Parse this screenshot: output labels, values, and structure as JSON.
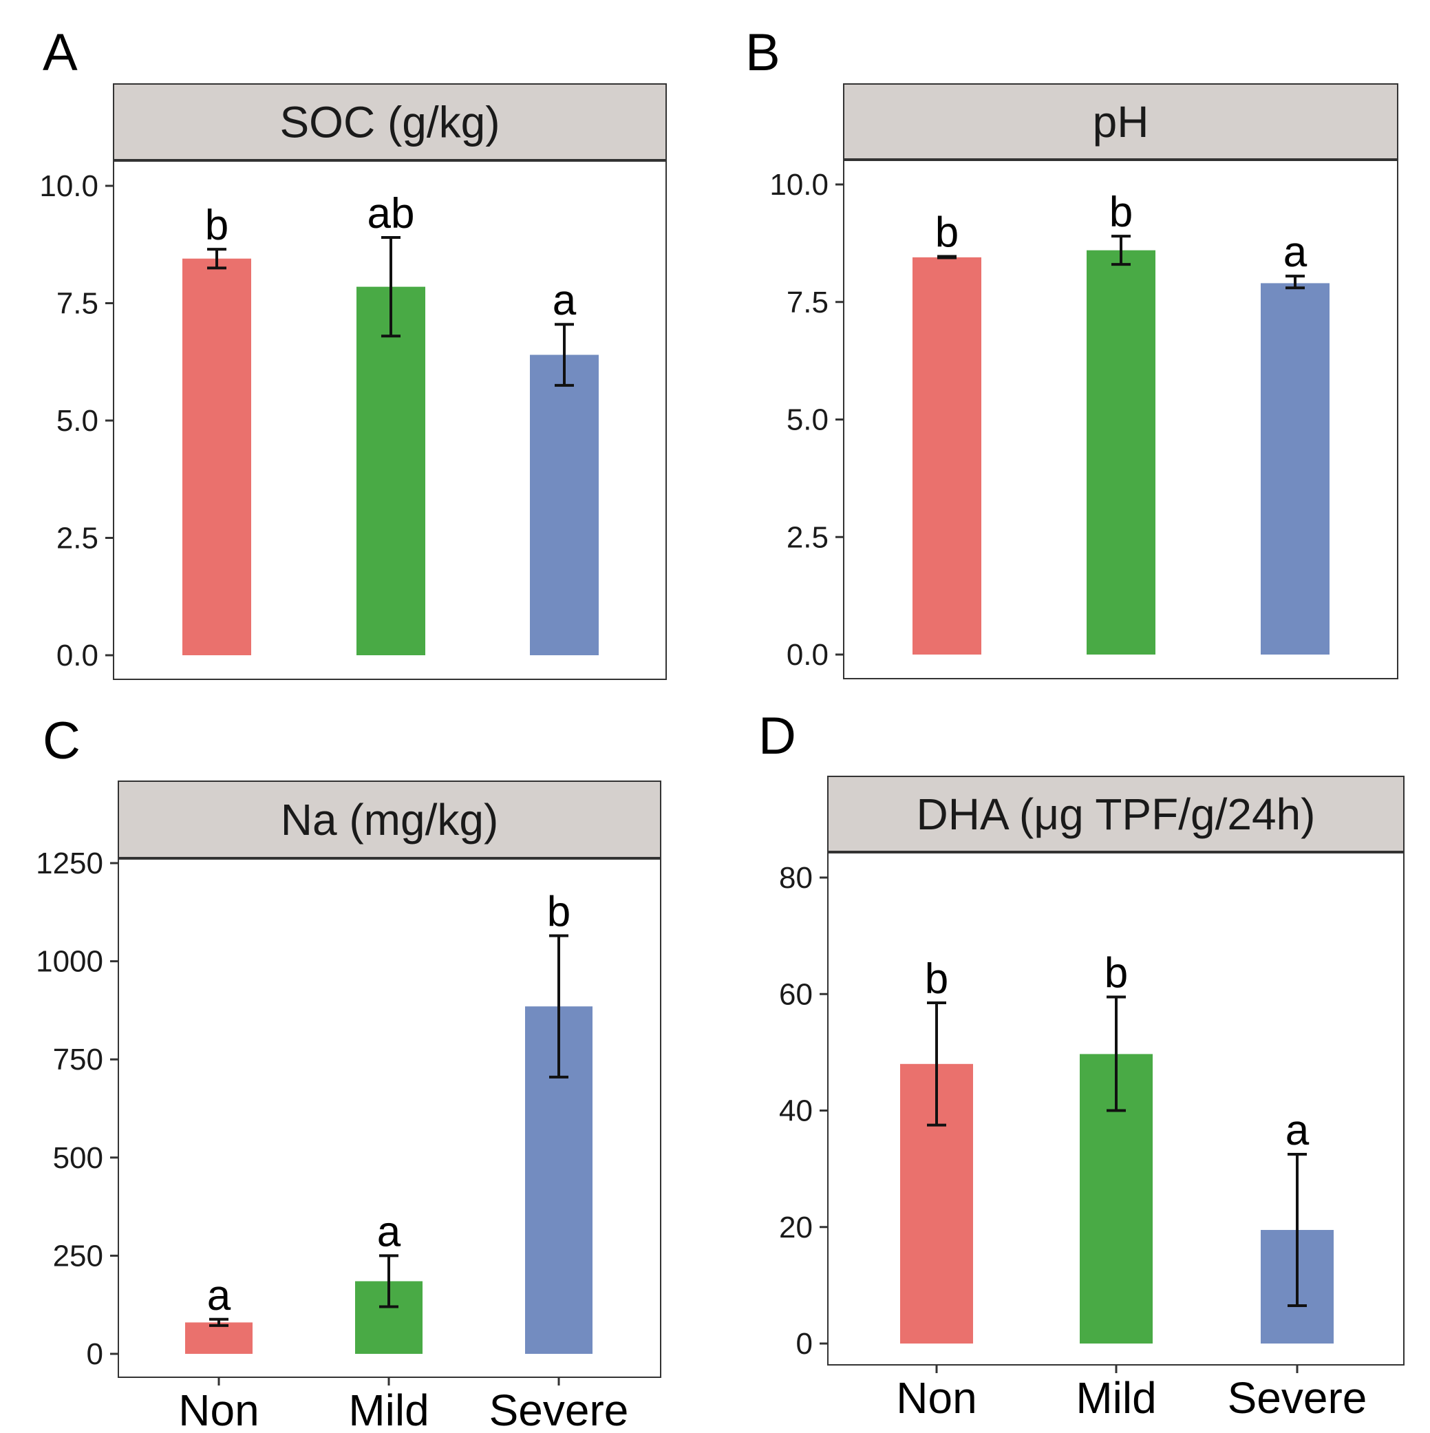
{
  "colors": {
    "Non": "#EA716D",
    "Mild": "#49AA45",
    "Severe": "#738CC0",
    "strip": "#D5D0CD"
  },
  "chart_data": [
    {
      "panel": "A",
      "type": "bar",
      "title": "SOC (g/kg)",
      "categories": [
        "Non",
        "Mild",
        "Severe"
      ],
      "values": [
        8.45,
        7.85,
        6.4
      ],
      "error_low": [
        8.25,
        6.8,
        5.75
      ],
      "error_high": [
        8.65,
        8.9,
        7.05
      ],
      "significance": [
        "b",
        "ab",
        "a"
      ],
      "ylim": [
        0,
        10
      ],
      "yticks": [
        0,
        2.5,
        5,
        7.5,
        10
      ],
      "ytick_labels": [
        "0.0",
        "2.5",
        "5.0",
        "7.5",
        "10.0"
      ],
      "xlabels_visible": false
    },
    {
      "panel": "B",
      "type": "bar",
      "title": "pH",
      "categories": [
        "Non",
        "Mild",
        "Severe"
      ],
      "values": [
        8.45,
        8.6,
        7.9
      ],
      "error_low": [
        8.44,
        8.3,
        7.8
      ],
      "error_high": [
        8.47,
        8.9,
        8.05
      ],
      "significance": [
        "b",
        "b",
        "a"
      ],
      "ylim": [
        0,
        10
      ],
      "yticks": [
        0,
        2.5,
        5,
        7.5,
        10
      ],
      "ytick_labels": [
        "0.0",
        "2.5",
        "5.0",
        "7.5",
        "10.0"
      ],
      "xlabels_visible": false
    },
    {
      "panel": "C",
      "type": "bar",
      "title": "Na (mg/kg)",
      "categories": [
        "Non",
        "Mild",
        "Severe"
      ],
      "values": [
        80,
        185,
        885
      ],
      "error_low": [
        72,
        120,
        705
      ],
      "error_high": [
        88,
        250,
        1065
      ],
      "significance": [
        "a",
        "a",
        "b"
      ],
      "ylim": [
        0,
        1250
      ],
      "yticks": [
        0,
        250,
        500,
        750,
        1000,
        1250
      ],
      "ytick_labels": [
        "0",
        "250",
        "500",
        "750",
        "1000",
        "1250"
      ],
      "xlabels_visible": true
    },
    {
      "panel": "D",
      "type": "bar",
      "title": "DHA (μg TPF/g/24h)",
      "categories": [
        "Non",
        "Mild",
        "Severe"
      ],
      "values": [
        48,
        49.7,
        19.5
      ],
      "error_low": [
        37.5,
        40,
        6.5
      ],
      "error_high": [
        58.5,
        59.5,
        32.5
      ],
      "significance": [
        "b",
        "b",
        "a"
      ],
      "ylim": [
        0,
        80
      ],
      "yticks": [
        0,
        20,
        40,
        60,
        80
      ],
      "ytick_labels": [
        "0",
        "20",
        "40",
        "60",
        "80"
      ],
      "xlabels_visible": true
    }
  ]
}
